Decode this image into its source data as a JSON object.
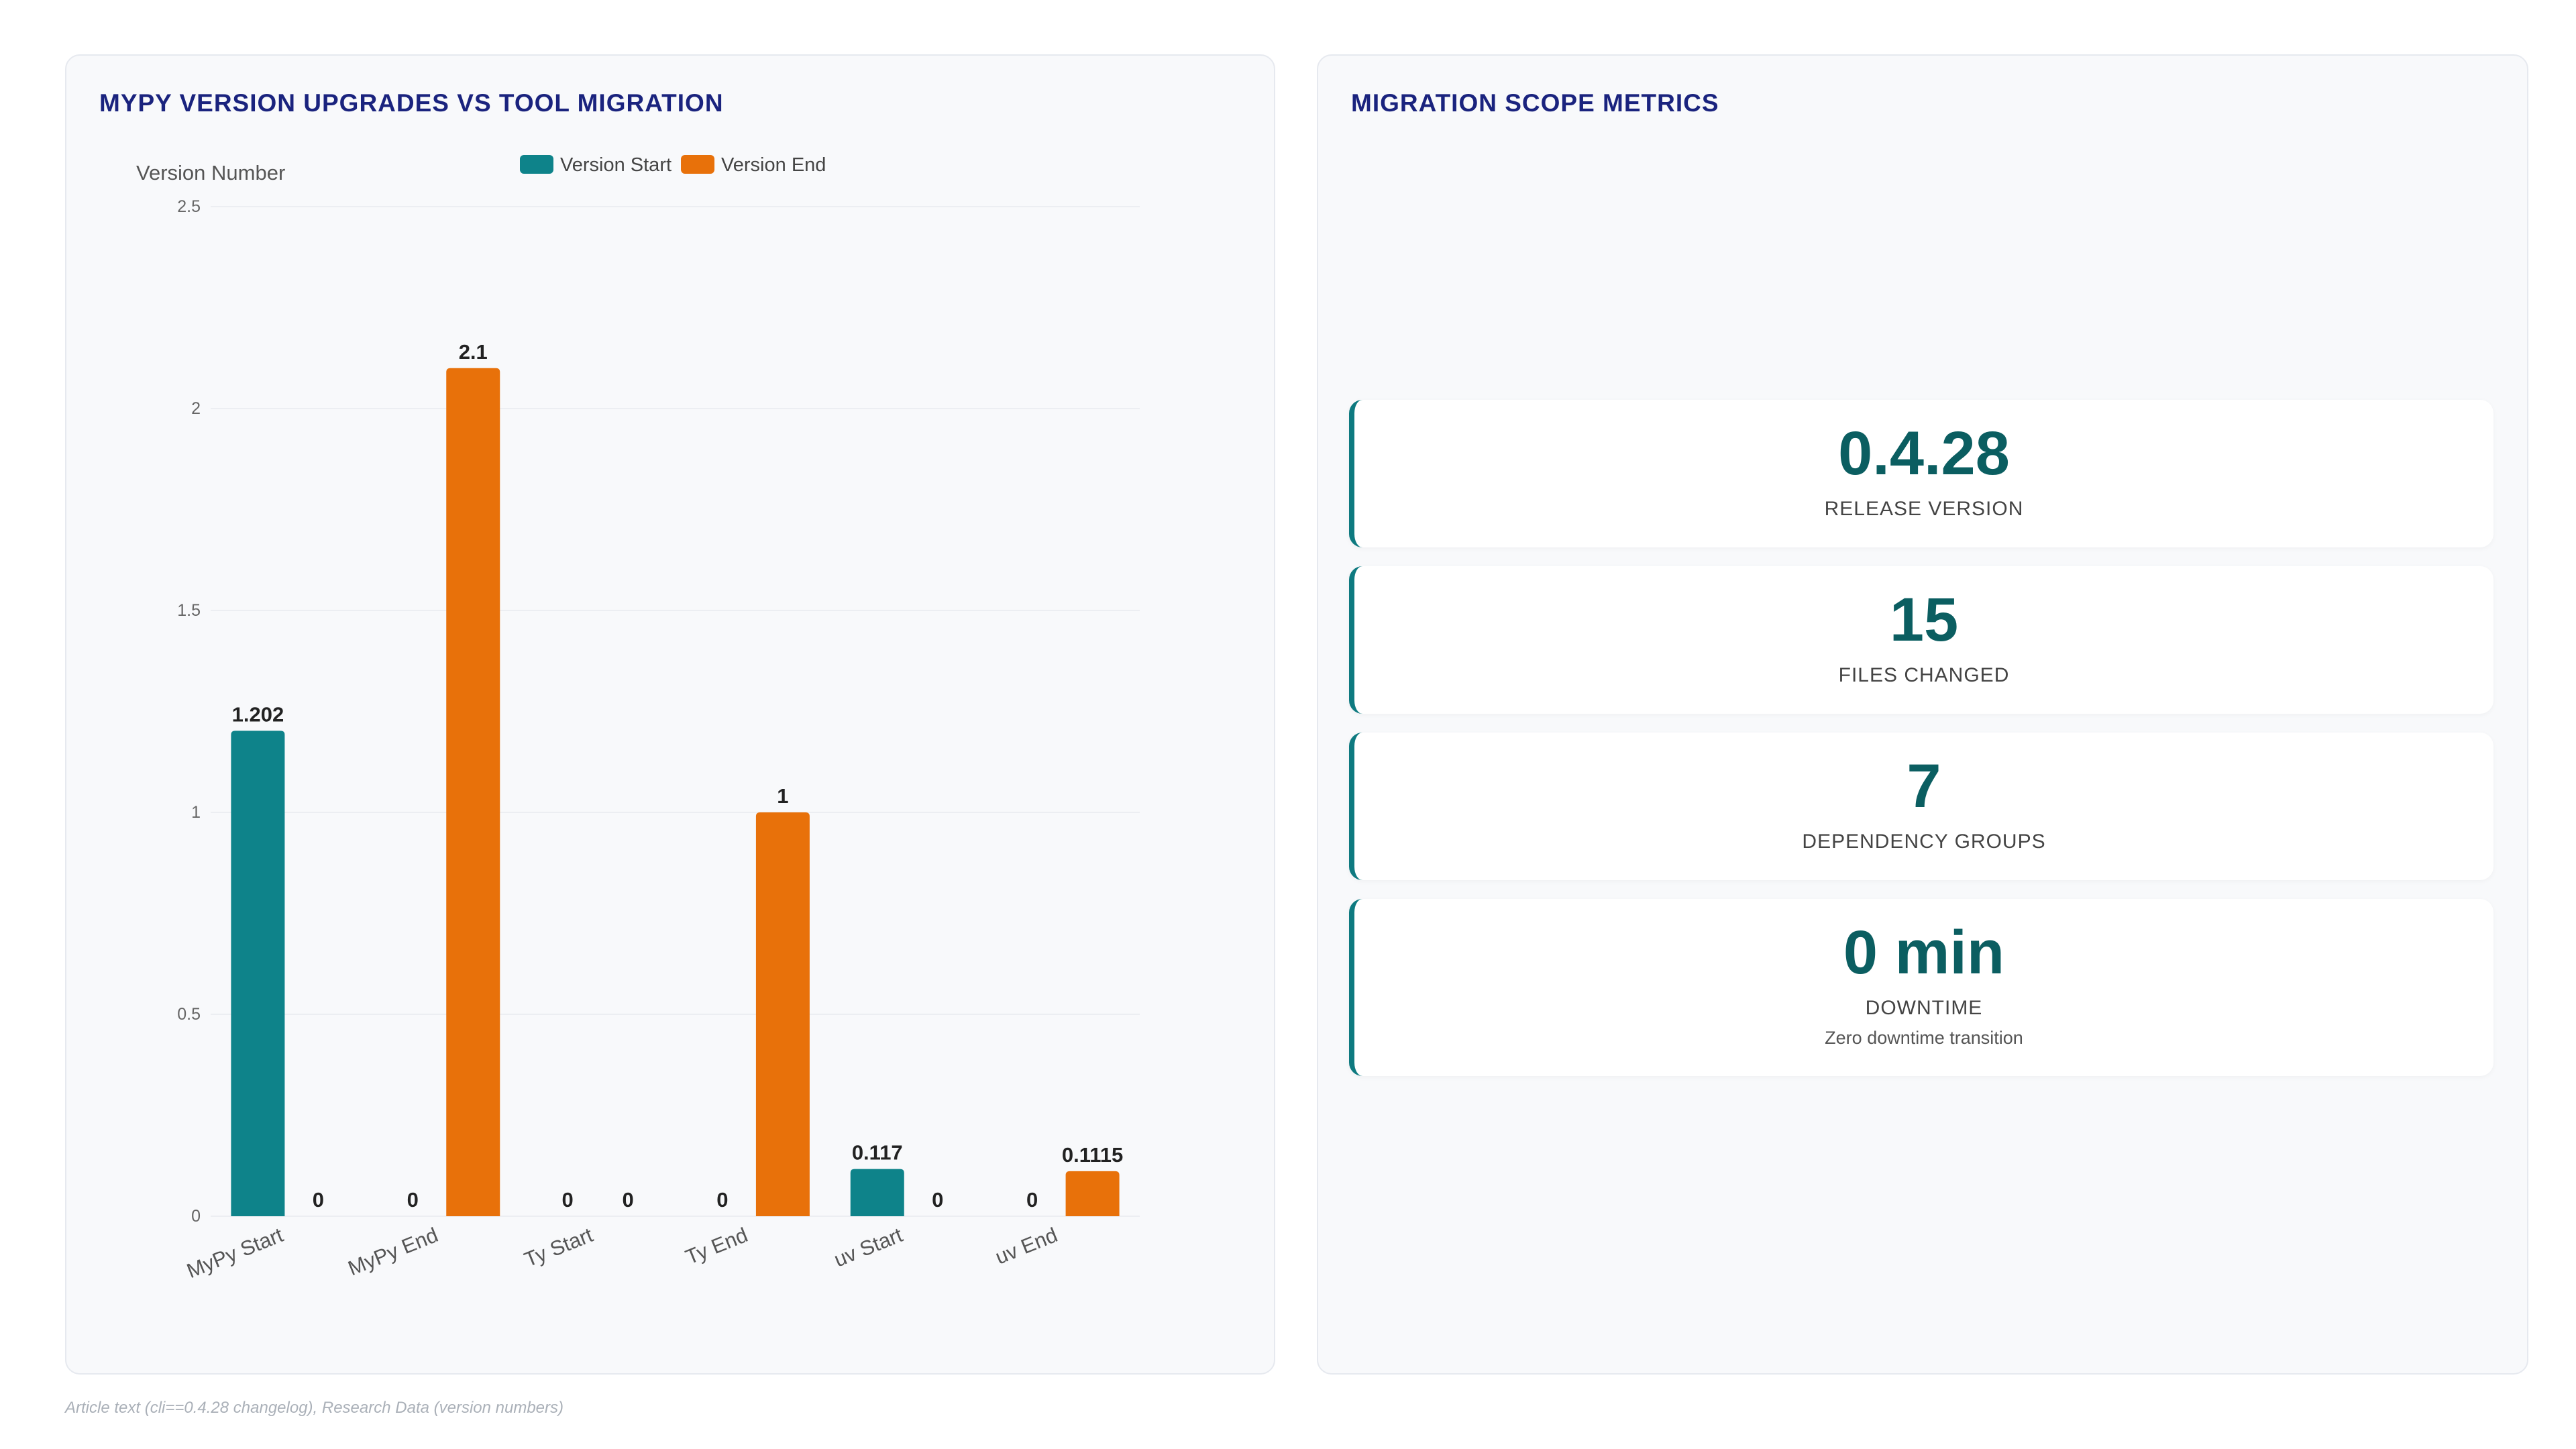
{
  "chart_panel": {
    "title": "MYPY VERSION UPGRADES VS TOOL MIGRATION"
  },
  "chart_data": {
    "type": "bar",
    "categories": [
      "MyPy Start",
      "MyPy End",
      "Ty Start",
      "Ty End",
      "uv Start",
      "uv End"
    ],
    "series": [
      {
        "name": "Version Start",
        "values": [
          1.202,
          0,
          0,
          0,
          0.117,
          0
        ],
        "labels": [
          "1.202",
          "0",
          "0",
          "0",
          "0.117",
          "0"
        ],
        "color": "#0e838a"
      },
      {
        "name": "Version End",
        "values": [
          0,
          2.1,
          0,
          1,
          0,
          0.1115
        ],
        "labels": [
          "0",
          "2.1",
          "0",
          "1",
          "0",
          "0.1115"
        ],
        "color": "#e8710a"
      }
    ],
    "ylabel": "Version Number",
    "xlabel": "",
    "ylim": [
      0,
      2.5
    ],
    "yticks": [
      "0",
      "0.5",
      "1",
      "1.5",
      "2",
      "2.5"
    ],
    "legend": "top-center",
    "grid": true
  },
  "metrics_panel": {
    "title": "MIGRATION SCOPE METRICS",
    "cards": [
      {
        "value": "0.4.28",
        "label": "RELEASE VERSION",
        "sub": ""
      },
      {
        "value": "15",
        "label": "FILES CHANGED",
        "sub": ""
      },
      {
        "value": "7",
        "label": "DEPENDENCY GROUPS",
        "sub": ""
      },
      {
        "value": "0 min",
        "label": "DOWNTIME",
        "sub": "Zero downtime transition"
      }
    ]
  },
  "source_note": "Article text (cli==0.4.28 changelog), Research Data (version numbers)"
}
